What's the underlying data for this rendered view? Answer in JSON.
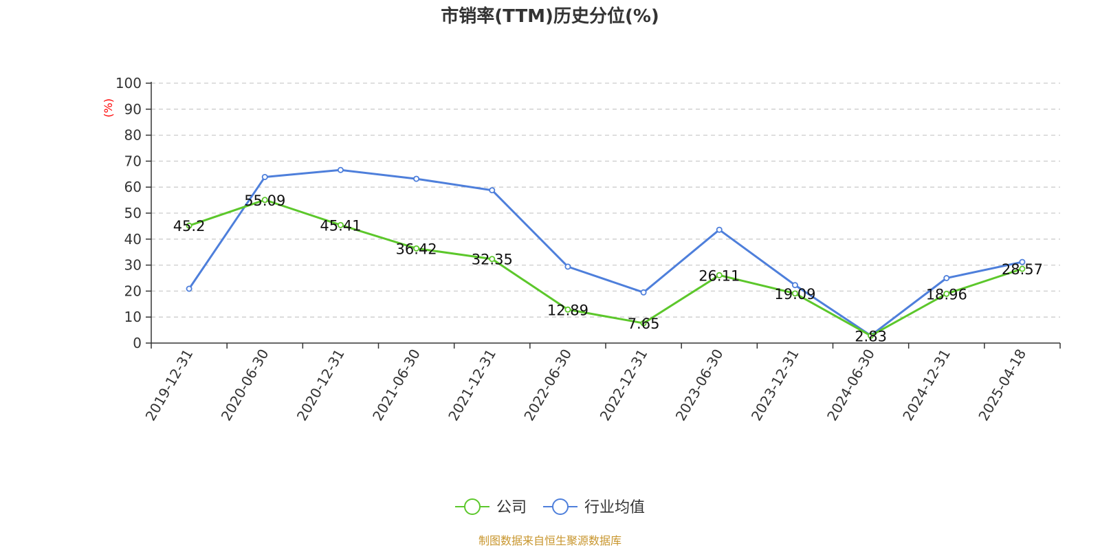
{
  "chart_data": {
    "type": "line",
    "title": "市销率(TTM)历史分位(%)",
    "ylabel": "(%)",
    "ylabel_color": "#ff0000",
    "ylim": [
      0,
      100
    ],
    "yticks": [
      0,
      10,
      20,
      30,
      40,
      50,
      60,
      70,
      80,
      90,
      100
    ],
    "grid": true,
    "legend_position": "bottom-center",
    "categories": [
      "2019-12-31",
      "2020-06-30",
      "2020-12-31",
      "2021-06-30",
      "2021-12-31",
      "2022-06-30",
      "2022-12-31",
      "2023-06-30",
      "2023-12-31",
      "2024-06-30",
      "2024-12-31",
      "2025-04-18"
    ],
    "series": [
      {
        "name": "公司",
        "color": "#5cc72b",
        "values": [
          45.2,
          55.09,
          45.41,
          36.42,
          32.35,
          12.89,
          7.65,
          26.11,
          19.09,
          2.83,
          18.96,
          28.57
        ],
        "labels": [
          "45.2",
          "55.09",
          "45.41",
          "36.42",
          "32.35",
          "12.89",
          "7.65",
          "26.11",
          "19.09",
          "2.83",
          "18.96",
          "28.57"
        ]
      },
      {
        "name": "行业均值",
        "color": "#4e7fdb",
        "values": [
          20.9,
          63.9,
          66.6,
          63.2,
          58.8,
          29.4,
          19.5,
          43.6,
          22.3,
          2.9,
          25.0,
          31.2
        ]
      }
    ],
    "source": "制图数据来自恒生聚源数据库",
    "source_color": "#c8962e"
  }
}
